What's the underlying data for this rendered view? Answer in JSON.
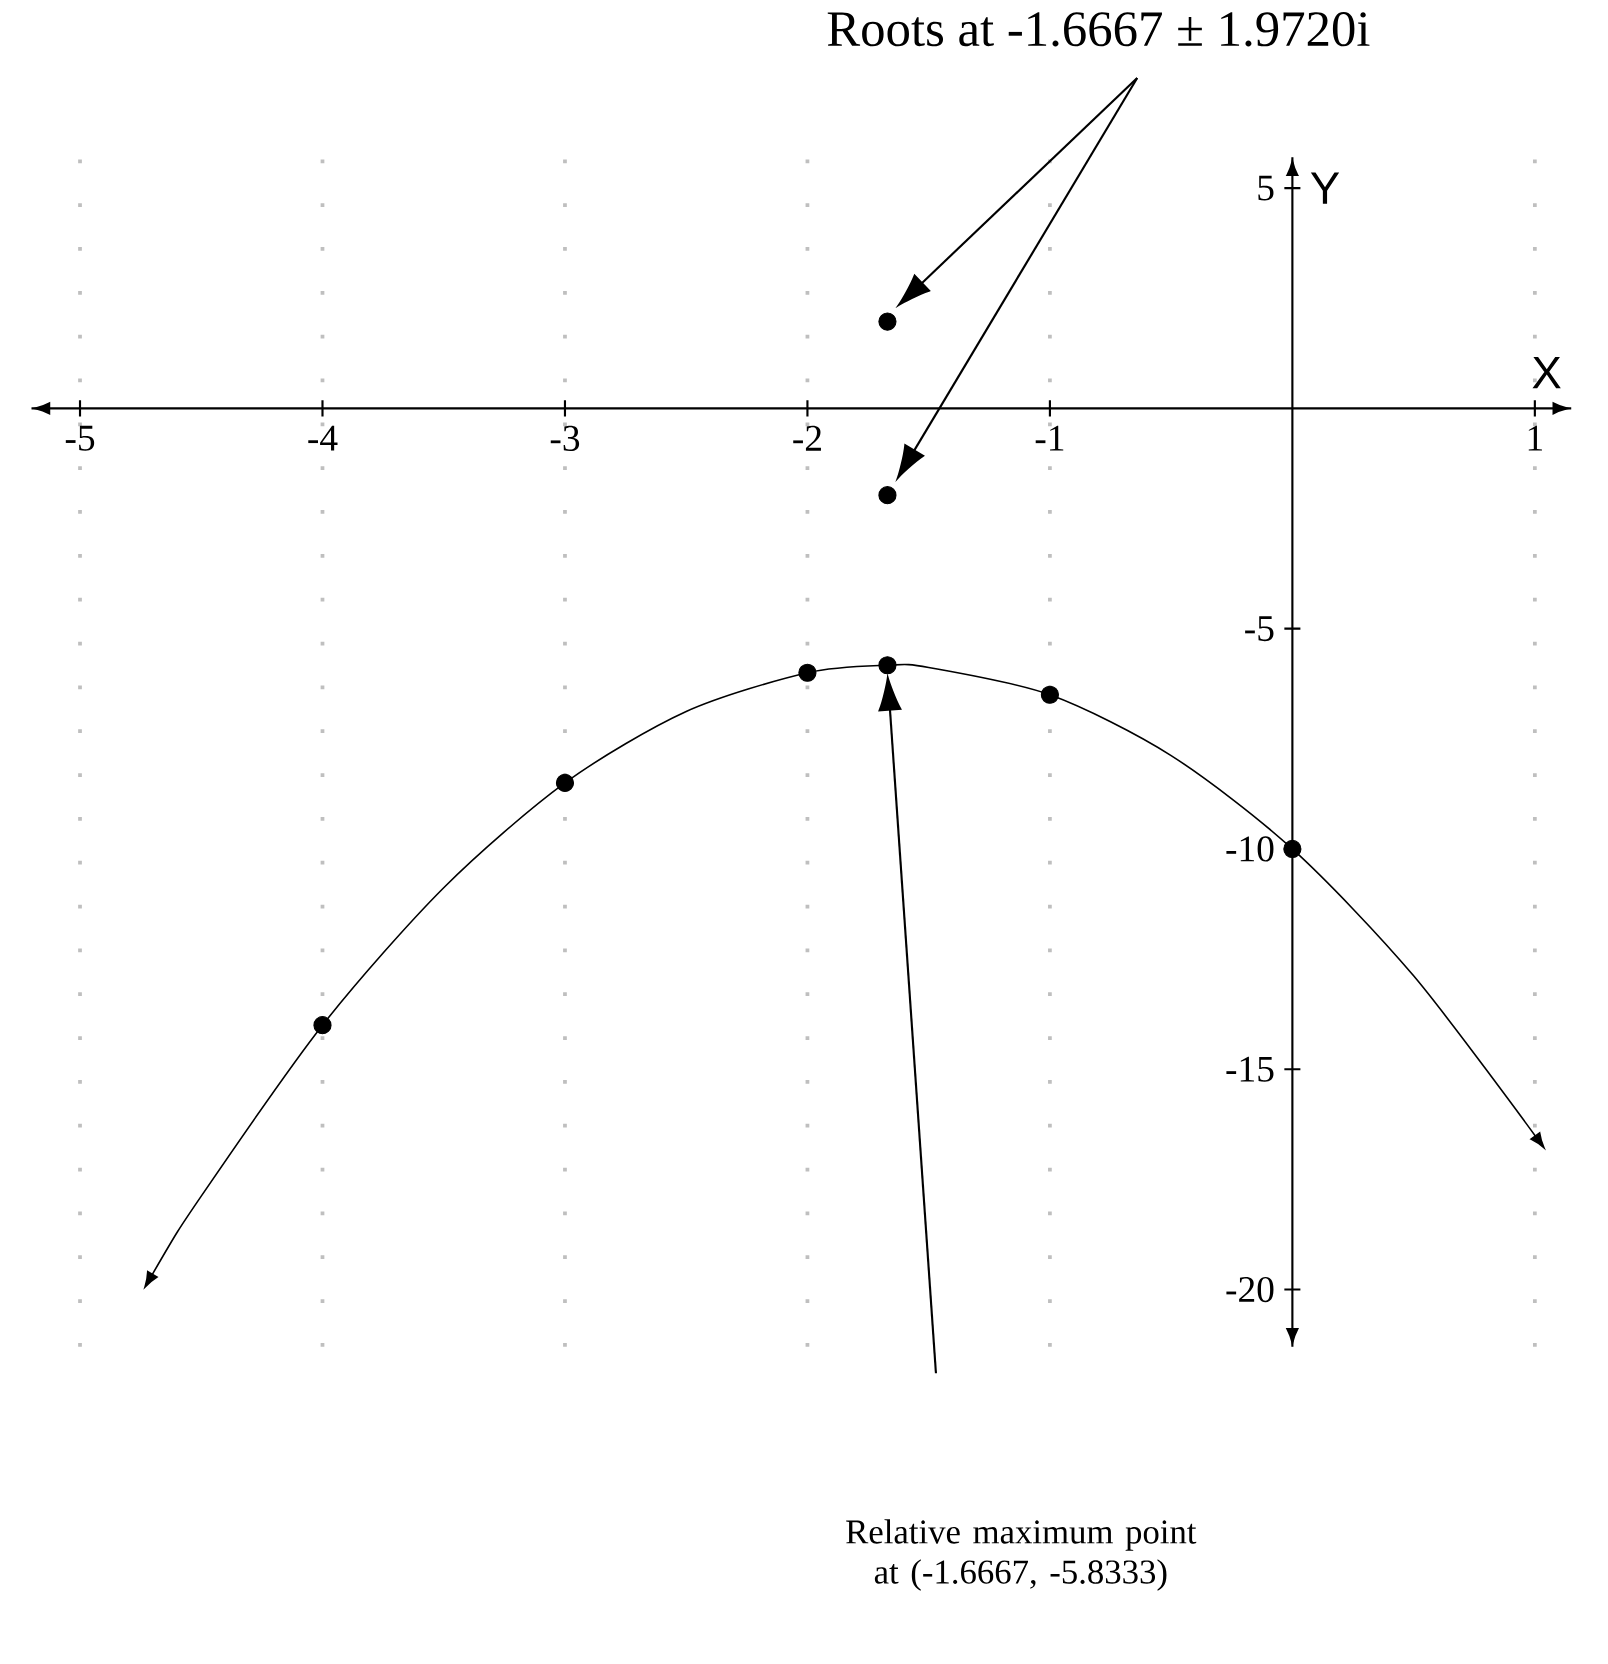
{
  "chart_data": {
    "type": "line",
    "xlabel": "X",
    "ylabel": "Y",
    "xlim": [
      -5.2,
      1.15
    ],
    "ylim": [
      -21.3,
      5.7
    ],
    "xticks": [
      -5,
      -4,
      -3,
      -2,
      -1,
      1
    ],
    "yticks": [
      -20,
      -15,
      -10,
      -5,
      5
    ],
    "grid": "x",
    "series": [
      {
        "type": "line",
        "color": "#000000",
        "x": [
          -4.7,
          -4.5,
          -4,
          -3.5,
          -3,
          -2.5,
          -2,
          -1.67,
          -1.5,
          -1,
          -0.5,
          0,
          0.5,
          1
        ],
        "values": [
          -19.64,
          -17.88,
          -14,
          -10.88,
          -8.5,
          -6.88,
          -6,
          -5.83,
          -5.88,
          -6.5,
          -7.88,
          -10,
          -12.88,
          -16.5
        ]
      },
      {
        "type": "scatter",
        "color": "#000000",
        "x": [
          -4,
          -3,
          -2,
          -1.67,
          -1,
          0
        ],
        "values": [
          -14,
          -8.5,
          -6,
          -5.83,
          -6.5,
          -10
        ]
      },
      {
        "type": "scatter",
        "color": "#000000",
        "x": [
          -1.67,
          -1.67
        ],
        "values": [
          1.97,
          -1.97
        ]
      }
    ],
    "annotations": [
      "Roots at -1.6667 ± 1.9720i",
      "Relative maximum point at (-1.6667, -5.8333)"
    ]
  }
}
